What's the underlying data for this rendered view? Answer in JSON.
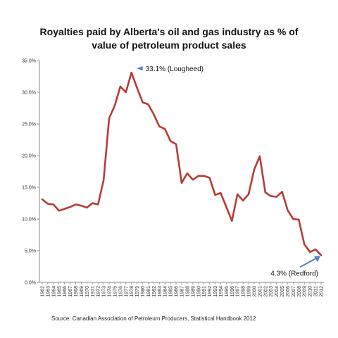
{
  "chart_data": {
    "type": "line",
    "title": "Royalties paid by Alberta's oil and gas industry as % of value of petroleum product sales",
    "source": "Source: Canadian Association of Petroleum Producers, Statistical Handbook 2012",
    "xlabel": "",
    "ylabel": "",
    "ylim": [
      0,
      35
    ],
    "y_ticks": [
      "0.0%",
      "5.0%",
      "10.0%",
      "15.0%",
      "20.0%",
      "25.0%",
      "30.0%",
      "35.0%"
    ],
    "grid": false,
    "legend": "none",
    "line_color": "#b83a36",
    "x": [
      "1962",
      "1963",
      "1964",
      "1965",
      "1966",
      "1967",
      "1968",
      "1969",
      "1970",
      "1971",
      "1972",
      "1973",
      "1974",
      "1975",
      "1976",
      "1977",
      "1978",
      "1979",
      "1980",
      "1981",
      "1982",
      "1983",
      "1984",
      "1985",
      "1986",
      "1987",
      "1988",
      "1989",
      "1990",
      "1991",
      "1992",
      "1993",
      "1994",
      "1995",
      "1996",
      "1997",
      "1998",
      "1999",
      "2000",
      "2001",
      "2002",
      "2003",
      "2004",
      "2005",
      "2006",
      "2007",
      "2008",
      "2009",
      "2010",
      "2011",
      "2012"
    ],
    "series": [
      {
        "values": [
          13.1,
          12.4,
          12.3,
          11.3,
          11.6,
          11.9,
          12.3,
          12.1,
          11.8,
          12.5,
          12.3,
          16.1,
          25.9,
          27.9,
          30.9,
          30.0,
          33.1,
          30.7,
          28.4,
          28.1,
          26.5,
          24.6,
          24.2,
          22.3,
          21.8,
          15.7,
          17.2,
          16.2,
          16.8,
          16.8,
          16.5,
          13.8,
          14.1,
          11.9,
          9.7,
          13.9,
          12.9,
          13.9,
          17.8,
          19.9,
          14.2,
          13.6,
          13.5,
          14.3,
          11.4,
          10.0,
          9.9,
          6.0,
          4.8,
          5.2,
          4.3
        ]
      }
    ],
    "annotations": [
      {
        "text": "33.1% (Lougheed)",
        "x": "1978",
        "y": 33.1
      },
      {
        "text": "4.3% (Redford)",
        "x": "2012",
        "y": 4.3
      }
    ]
  }
}
